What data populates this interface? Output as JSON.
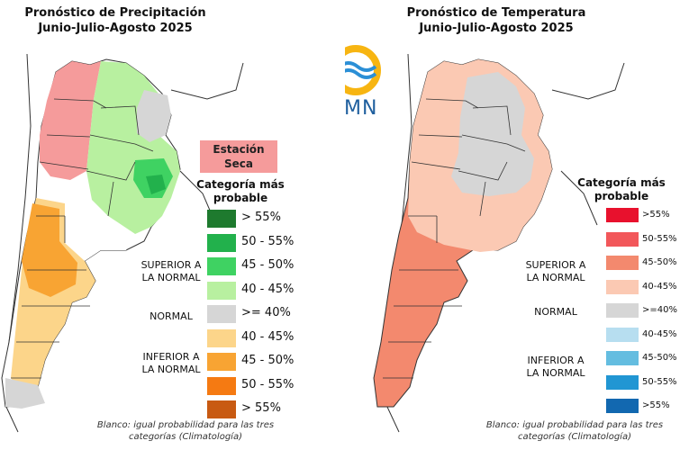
{
  "precipitation": {
    "title_line1": "Pronóstico de Precipitación",
    "title_line2": "Junio-Julio-Agosto 2025",
    "dry_season_line1": "Estación",
    "dry_season_line2": "Seca",
    "legend_title_line1": "Categoría más",
    "legend_title_line2": "probable",
    "categories": {
      "superior_line1": "SUPERIOR A",
      "superior_line2": "LA NORMAL",
      "normal": "NORMAL",
      "inferior_line1": "INFERIOR A",
      "inferior_line2": "LA NORMAL"
    },
    "legend": [
      {
        "label": "> 55%",
        "color": "#1e7a2e"
      },
      {
        "label": "50 - 55%",
        "color": "#22b14c"
      },
      {
        "label": "45 - 50%",
        "color": "#3fd262"
      },
      {
        "label": "40 - 45%",
        "color": "#b8f0a0"
      },
      {
        "label": ">= 40%",
        "color": "#d6d6d6"
      },
      {
        "label": "40 - 45%",
        "color": "#fcd58a"
      },
      {
        "label": "45 - 50%",
        "color": "#f8a433"
      },
      {
        "label": "50 - 55%",
        "color": "#f57a12"
      },
      {
        "label": "> 55%",
        "color": "#c85a12"
      }
    ],
    "footnote_line1": "Blanco: igual probabilidad para las tres",
    "footnote_line2": "categorías (Climatología)"
  },
  "temperature": {
    "title_line1": "Pronóstico de Temperatura",
    "title_line2": "Junio-Julio-Agosto 2025",
    "logo_text": "SMN",
    "legend_title_line1": "Categoría más",
    "legend_title_line2": "probable",
    "categories": {
      "superior_line1": "SUPERIOR A",
      "superior_line2": "LA NORMAL",
      "normal": "NORMAL",
      "inferior_line1": "INFERIOR A",
      "inferior_line2": "LA NORMAL"
    },
    "legend": [
      {
        "label": ">55%",
        "color": "#e8112d"
      },
      {
        "label": "50-55%",
        "color": "#f2575a"
      },
      {
        "label": "45-50%",
        "color": "#f3896e"
      },
      {
        "label": "40-45%",
        "color": "#fbc9b3"
      },
      {
        "label": ">=40%",
        "color": "#d6d6d6"
      },
      {
        "label": "40-45%",
        "color": "#b7def0"
      },
      {
        "label": "45-50%",
        "color": "#64bde0"
      },
      {
        "label": "50-55%",
        "color": "#2196d3"
      },
      {
        "label": ">55%",
        "color": "#1268b0"
      }
    ],
    "footnote_line1": "Blanco: igual probabilidad para las tres",
    "footnote_line2": "categorías (Climatología)"
  }
}
